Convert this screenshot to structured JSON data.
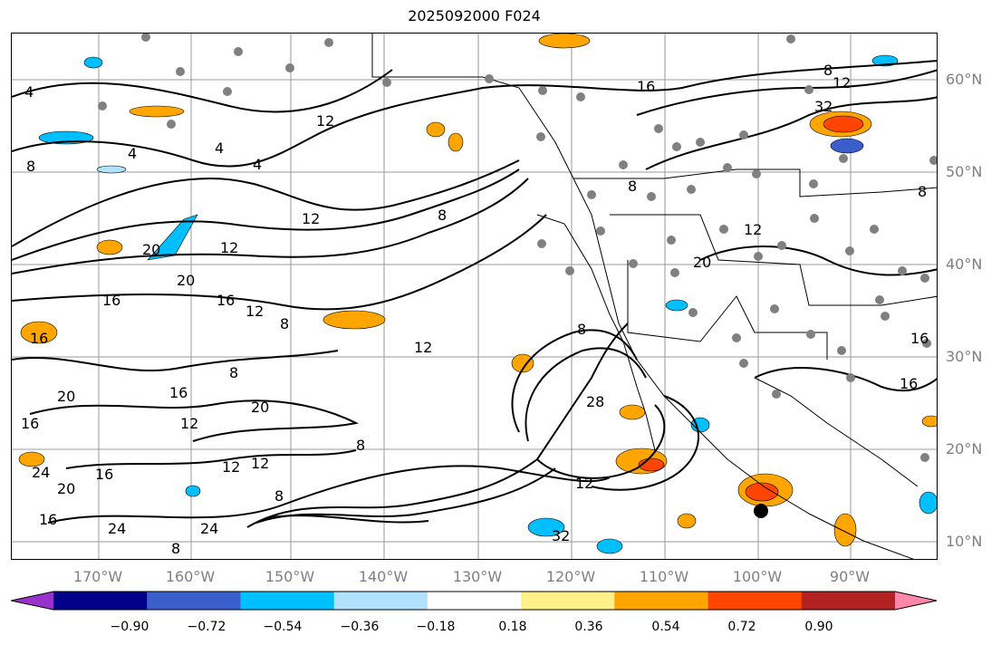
{
  "title": "2025092000 F024",
  "lat_labels": [
    "60°N",
    "50°N",
    "40°N",
    "30°N",
    "20°N",
    "10°N"
  ],
  "lon_labels": [
    "170°W",
    "160°W",
    "150°W",
    "140°W",
    "130°W",
    "120°W",
    "110°W",
    "100°W",
    "90°W"
  ],
  "colorbar": {
    "colors": [
      "#9932cc",
      "#00008b",
      "#3a5fcd",
      "#00bfff",
      "#b0e2ff",
      "#ffffff",
      "#fff08a",
      "#ffa500",
      "#ff4500",
      "#b22222",
      "#ff88aa"
    ],
    "ticks": [
      "−0.90",
      "−0.72",
      "−0.54",
      "−0.36",
      "−0.18",
      "0.18",
      "0.36",
      "0.54",
      "0.72",
      "0.90"
    ]
  },
  "contour_labels": [
    "4",
    "4",
    "4",
    "4",
    "8",
    "12",
    "12",
    "16",
    "20",
    "16",
    "12",
    "8",
    "20",
    "16",
    "16",
    "12",
    "8",
    "16",
    "20",
    "16",
    "12",
    "20",
    "8",
    "8",
    "12",
    "24",
    "20",
    "16",
    "24",
    "24",
    "32",
    "8",
    "28",
    "12",
    "8",
    "12",
    "12",
    "16",
    "20",
    "12",
    "8",
    "8",
    "16",
    "16",
    "8",
    "12",
    "32",
    "8"
  ]
}
